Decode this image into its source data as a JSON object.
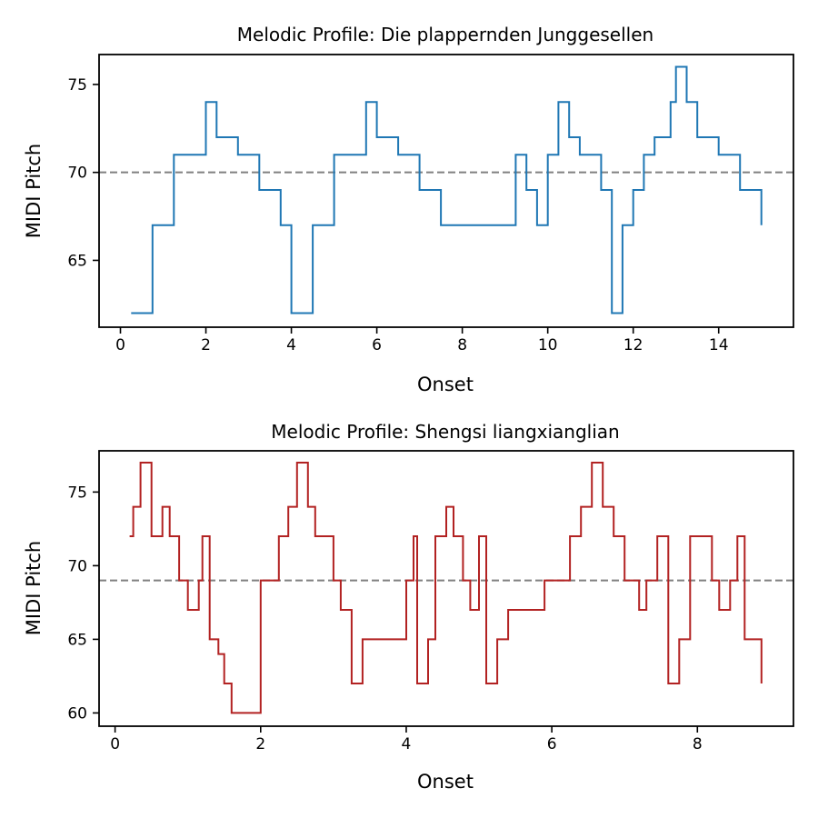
{
  "chart_data": [
    {
      "type": "line",
      "step": true,
      "title": "Melodic Profile: Die plappernden Junggesellen",
      "xlabel": "Onset",
      "ylabel": "MIDI Pitch",
      "xlim": [
        -0.5,
        15.75
      ],
      "ylim": [
        61.2,
        76.7
      ],
      "xticks": [
        0,
        2,
        4,
        6,
        8,
        10,
        12,
        14
      ],
      "yticks": [
        65,
        70,
        75
      ],
      "grid": false,
      "reference_line": {
        "y": 70,
        "style": "dashed",
        "color": "#808080"
      },
      "series": [
        {
          "color": "#1f77b4",
          "x": [
            0.25,
            0.75,
            1.25,
            2.0,
            2.25,
            2.75,
            3.25,
            3.75,
            4.0,
            4.5,
            5.0,
            5.75,
            6.0,
            6.5,
            7.0,
            7.5,
            9.25,
            9.5,
            9.75,
            10.0,
            10.25,
            10.5,
            10.75,
            11.25,
            11.5,
            11.75,
            12.0,
            12.25,
            12.5,
            12.875,
            13.0,
            13.25,
            13.5,
            14.0,
            14.5,
            15.0
          ],
          "y": [
            62,
            67,
            71,
            74,
            72,
            71,
            69,
            67,
            62,
            67,
            71,
            74,
            72,
            71,
            69,
            67,
            71,
            69,
            67,
            71,
            74,
            72,
            71,
            69,
            62,
            67,
            69,
            71,
            72,
            74,
            76,
            74,
            72,
            71,
            69,
            67
          ]
        }
      ]
    },
    {
      "type": "line",
      "step": true,
      "title": "Melodic Profile: Shengsi liangxianglian",
      "xlabel": "Onset",
      "ylabel": "MIDI Pitch",
      "xlim": [
        -0.22,
        9.32
      ],
      "ylim": [
        59.1,
        77.8
      ],
      "xticks": [
        0,
        2,
        4,
        6,
        8
      ],
      "yticks": [
        60,
        65,
        70,
        75
      ],
      "grid": false,
      "reference_line": {
        "y": 69,
        "style": "dashed",
        "color": "#808080"
      },
      "series": [
        {
          "color": "#b22222",
          "x": [
            0.2,
            0.25,
            0.35,
            0.5,
            0.65,
            0.75,
            0.88,
            1.0,
            1.15,
            1.2,
            1.3,
            1.42,
            1.5,
            1.6,
            2.0,
            2.25,
            2.38,
            2.5,
            2.65,
            2.75,
            3.0,
            3.1,
            3.25,
            3.4,
            3.5,
            3.6,
            3.85,
            4.0,
            4.1,
            4.15,
            4.3,
            4.4,
            4.55,
            4.65,
            4.78,
            4.88,
            5.0,
            5.1,
            5.25,
            5.4,
            5.5,
            5.9,
            6.0,
            6.25,
            6.4,
            6.55,
            6.7,
            6.85,
            7.0,
            7.2,
            7.3,
            7.45,
            7.6,
            7.75,
            7.9,
            8.0,
            8.2,
            8.3,
            8.45,
            8.55,
            8.65,
            8.88
          ],
          "y": [
            72,
            74,
            77,
            72,
            74,
            72,
            69,
            67,
            69,
            72,
            65,
            64,
            62,
            60,
            69,
            72,
            74,
            77,
            74,
            72,
            69,
            67,
            62,
            65,
            65,
            65,
            65,
            69,
            72,
            62,
            65,
            72,
            74,
            72,
            69,
            67,
            72,
            62,
            65,
            67,
            67,
            69,
            69,
            72,
            74,
            77,
            74,
            72,
            69,
            67,
            69,
            72,
            62,
            65,
            72,
            72,
            69,
            67,
            69,
            72,
            65,
            62
          ]
        }
      ]
    }
  ]
}
